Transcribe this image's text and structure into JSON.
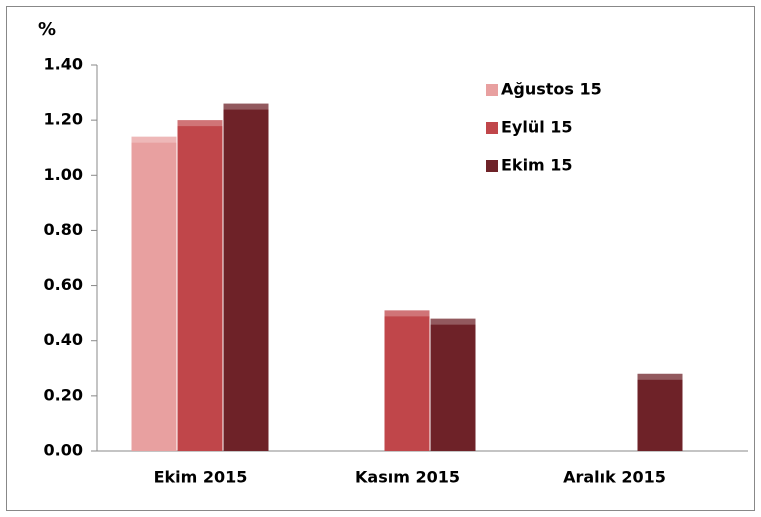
{
  "chart_data": {
    "type": "bar",
    "y_label": "%",
    "categories": [
      "Ekim 2015",
      "Kasım 2015",
      "Aralık 2015"
    ],
    "series": [
      {
        "name": "Ağustos 15",
        "color": "#e8a0a0",
        "values": [
          1.14,
          null,
          null
        ]
      },
      {
        "name": "Eylül 15",
        "color": "#c0464a",
        "values": [
          1.2,
          0.51,
          null
        ]
      },
      {
        "name": "Ekim 15",
        "color": "#6e2228",
        "values": [
          1.26,
          0.48,
          0.28
        ]
      }
    ],
    "ylim": [
      0,
      1.4
    ],
    "yticks": [
      {
        "value": 0,
        "label": "0.00"
      },
      {
        "value": 0.2,
        "label": "0.20"
      },
      {
        "value": 0.4,
        "label": "0.40"
      },
      {
        "value": 0.6,
        "label": "0.60"
      },
      {
        "value": 0.8,
        "label": "0.80"
      },
      {
        "value": 1.0,
        "label": "1.00"
      },
      {
        "value": 1.2,
        "label": "1.20"
      },
      {
        "value": 1.4,
        "label": "1.40"
      }
    ],
    "legend": "upper right"
  }
}
